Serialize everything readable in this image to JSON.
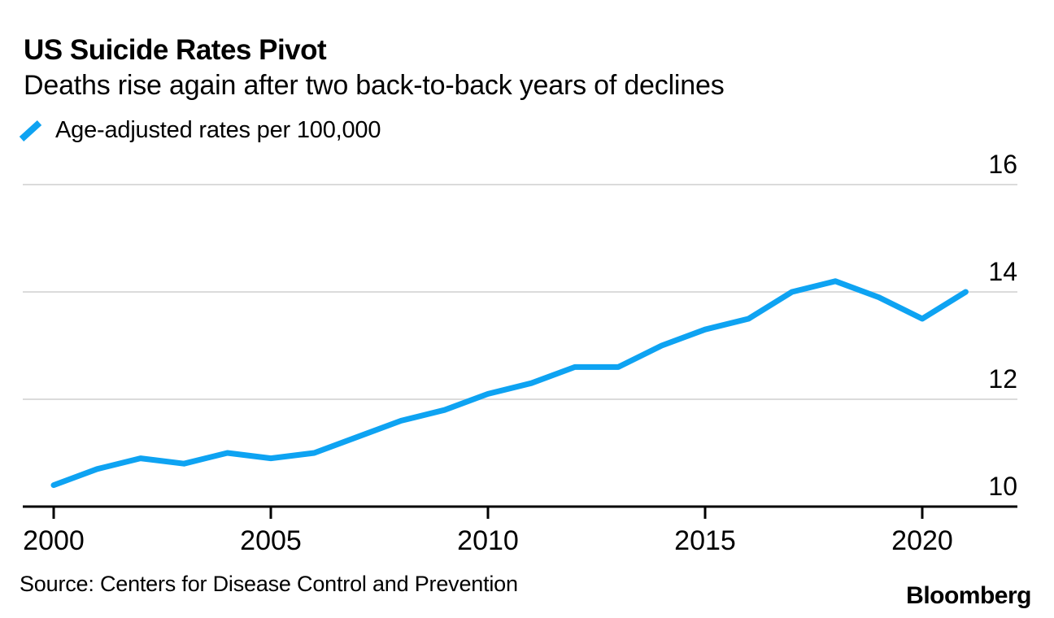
{
  "header": {
    "title": "US Suicide Rates Pivot",
    "subtitle": "Deaths rise again after two back-to-back years of declines"
  },
  "legend": {
    "label": "Age-adjusted rates per 100,000",
    "marker_color": "#0EA3F2"
  },
  "chart_data": {
    "type": "line",
    "title": "US Suicide Rates Pivot",
    "subtitle": "Deaths rise again after two back-to-back years of declines",
    "x": [
      2000,
      2001,
      2002,
      2003,
      2004,
      2005,
      2006,
      2007,
      2008,
      2009,
      2010,
      2011,
      2012,
      2013,
      2014,
      2015,
      2016,
      2017,
      2018,
      2019,
      2020,
      2021
    ],
    "series": [
      {
        "name": "Age-adjusted rates per 100,000",
        "color": "#0EA3F2",
        "values": [
          10.4,
          10.7,
          10.9,
          10.8,
          11.0,
          10.9,
          11.0,
          11.3,
          11.6,
          11.8,
          12.1,
          12.3,
          12.6,
          12.6,
          13.0,
          13.3,
          13.5,
          14.0,
          14.2,
          13.9,
          13.5,
          14.0
        ]
      }
    ],
    "xticks": [
      2000,
      2005,
      2010,
      2015,
      2020
    ],
    "yticks": [
      10,
      12,
      14,
      16
    ],
    "ylim": [
      10,
      16
    ],
    "xlim": [
      2000,
      2021
    ],
    "xlabel": "",
    "ylabel": "",
    "y_axis_side": "right",
    "grid": "horizontal-only",
    "legend_position": "top-left",
    "colors": {
      "line": "#0EA3F2",
      "grid": "#DBDBDB",
      "axis": "#000000",
      "text": "#000000"
    }
  },
  "footer": {
    "source": "Source: Centers for Disease Control and Prevention",
    "brand": "Bloomberg"
  }
}
